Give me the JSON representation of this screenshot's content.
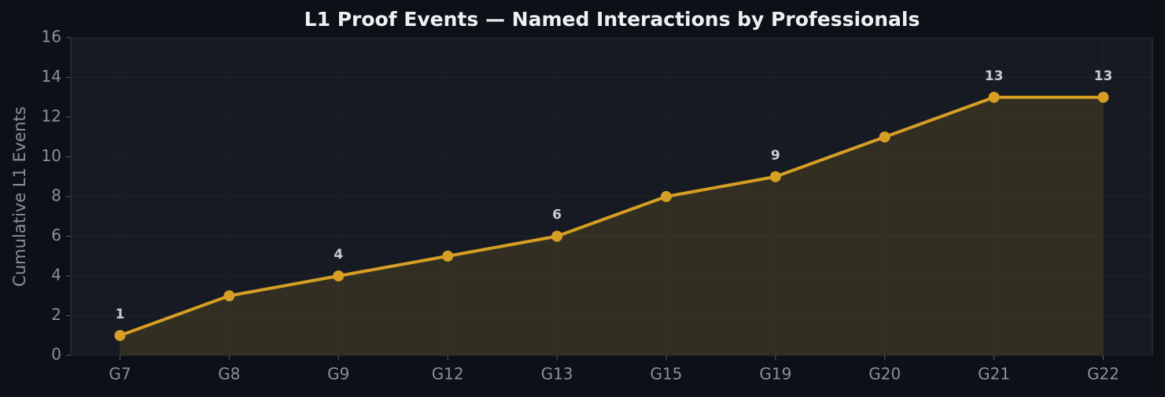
{
  "chart_data": {
    "type": "line",
    "title": "L1 Proof Events — Named Interactions by Professionals",
    "y_label": "Cumulative L1 Events",
    "categories": [
      "G7",
      "G8",
      "G9",
      "G12",
      "G13",
      "G15",
      "G19",
      "G20",
      "G21",
      "G22"
    ],
    "series": [
      {
        "name": "L1 Proof Events",
        "color": "#d69e24",
        "values": [
          1,
          3,
          4,
          5,
          6,
          8,
          9,
          11,
          13,
          13
        ],
        "value_labels": [
          "1",
          null,
          "4",
          null,
          "6",
          null,
          "9",
          null,
          "13",
          "13"
        ]
      }
    ],
    "ylim": [
      0,
      16
    ],
    "yticks": [
      0,
      2,
      4,
      6,
      8,
      10,
      12,
      14,
      16
    ],
    "grid": true,
    "fill": true
  }
}
